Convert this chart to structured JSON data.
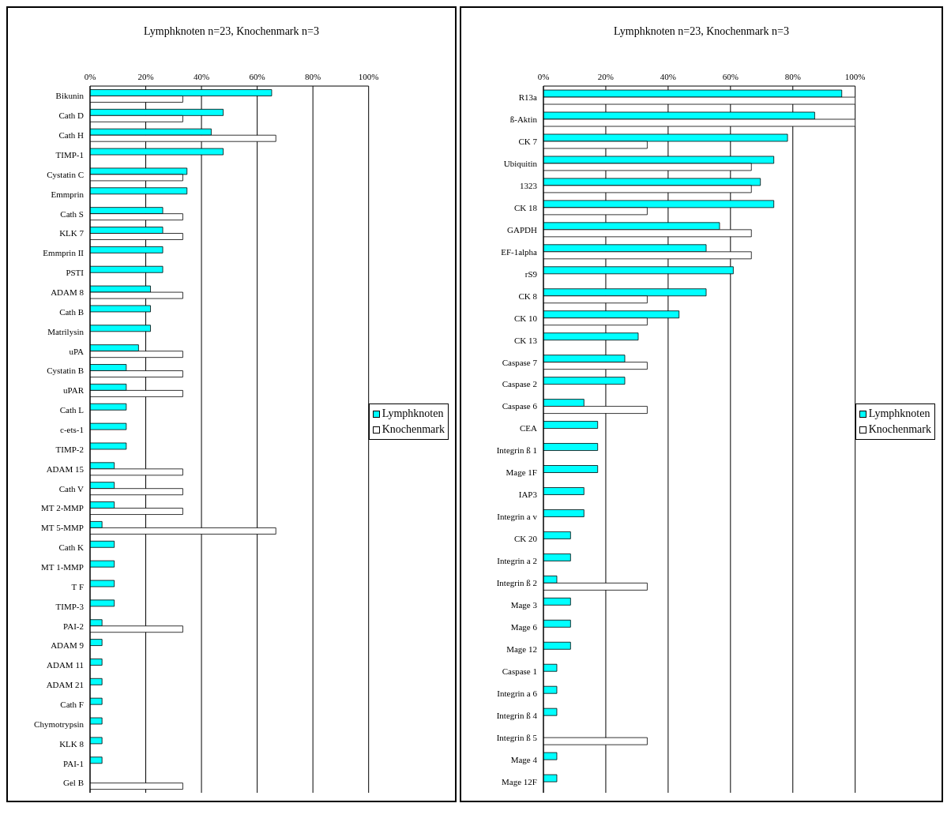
{
  "chart_data": [
    {
      "type": "bar",
      "orientation": "horizontal",
      "title": "Lymphknoten n=23, Knochenmark n=3",
      "categories": [
        "Bikunin",
        "Cath D",
        "Cath H",
        "TIMP-1",
        "Cystatin C",
        "Emmprin",
        "Cath S",
        "KLK 7",
        "Emmprin II",
        "PSTI",
        "ADAM  8",
        "Cath B",
        "Matrilysin",
        "uPA",
        "Cystatin B",
        "uPAR",
        "Cath L",
        "c-ets-1",
        "TIMP-2",
        "ADAM 15",
        "Cath V",
        "MT 2-MMP",
        "MT 5-MMP",
        "Cath K",
        "MT 1-MMP",
        "T F",
        "TIMP-3",
        "PAI-2",
        "ADAM 9",
        "ADAM 11",
        "ADAM 21",
        "Cath F",
        "Chymotrypsin",
        "KLK 8",
        "PAI-1",
        "Gel B"
      ],
      "series": [
        {
          "name": "Lymphknoten",
          "color": "#00ffff",
          "values": [
            65.2,
            47.8,
            43.5,
            47.8,
            34.8,
            34.8,
            26.1,
            26.1,
            26.1,
            26.1,
            21.7,
            21.7,
            21.7,
            17.4,
            13.0,
            13.0,
            13.0,
            13.0,
            13.0,
            8.7,
            8.7,
            8.7,
            4.3,
            8.7,
            8.7,
            8.7,
            8.7,
            4.3,
            4.3,
            4.3,
            4.3,
            4.3,
            4.3,
            4.3,
            4.3,
            null
          ]
        },
        {
          "name": "Knochenmark",
          "color": "#ffffff",
          "values": [
            33.3,
            33.3,
            66.7,
            null,
            33.3,
            null,
            33.3,
            33.3,
            null,
            null,
            33.3,
            null,
            null,
            33.3,
            33.3,
            33.3,
            null,
            null,
            null,
            33.3,
            33.3,
            33.3,
            66.7,
            null,
            null,
            null,
            null,
            33.3,
            null,
            null,
            null,
            null,
            null,
            null,
            null,
            33.3
          ]
        }
      ],
      "xlim": [
        0,
        100
      ],
      "xticks": [
        {
          "value": 0,
          "label": "0%"
        },
        {
          "value": 20,
          "label": "20%"
        },
        {
          "value": 40,
          "label": "40%"
        },
        {
          "value": 60,
          "label": "60%"
        },
        {
          "value": 80,
          "label": "80%"
        },
        {
          "value": 100,
          "label": "100%"
        }
      ],
      "grid": "x",
      "legend": "right"
    },
    {
      "type": "bar",
      "orientation": "horizontal",
      "title": "Lymphknoten n=23, Knochenmark n=3",
      "categories": [
        "R13a",
        "ß-Aktin",
        "CK 7",
        "Ubiquitin",
        "1323",
        "CK 18",
        "GAPDH",
        "EF-1alpha",
        "rS9",
        "CK 8",
        "CK 10",
        "CK 13",
        "Caspase 7",
        "Caspase 2",
        "Caspase 6",
        "CEA",
        "Integrin ß 1",
        "Mage 1F",
        "IAP3",
        "Integrin a v",
        "CK 20",
        "Integrin a 2",
        "Integrin ß 2",
        "Mage 3",
        "Mage 6",
        "Mage 12",
        "Caspase 1",
        "Integrin a 6",
        "Integrin ß 4",
        "Integrin ß 5",
        "Mage 4",
        "Mage 12F"
      ],
      "series": [
        {
          "name": "Lymphknoten",
          "color": "#00ffff",
          "values": [
            95.7,
            87.0,
            78.3,
            73.9,
            69.6,
            73.9,
            56.5,
            52.2,
            60.9,
            52.2,
            43.5,
            30.4,
            26.1,
            26.1,
            13.0,
            17.4,
            17.4,
            17.4,
            13.0,
            13.0,
            8.7,
            8.7,
            4.3,
            8.7,
            8.7,
            8.7,
            4.3,
            4.3,
            4.3,
            null,
            4.3,
            4.3
          ]
        },
        {
          "name": "Knochenmark",
          "color": "#ffffff",
          "values": [
            100,
            100,
            33.3,
            66.7,
            66.7,
            33.3,
            66.7,
            66.7,
            null,
            33.3,
            33.3,
            null,
            33.3,
            null,
            33.3,
            null,
            null,
            null,
            null,
            null,
            null,
            null,
            33.3,
            null,
            null,
            null,
            null,
            null,
            null,
            33.3,
            null,
            null
          ]
        }
      ],
      "xlim": [
        0,
        100
      ],
      "xticks": [
        {
          "value": 0,
          "label": "0%"
        },
        {
          "value": 20,
          "label": "20%"
        },
        {
          "value": 40,
          "label": "40%"
        },
        {
          "value": 60,
          "label": "60%"
        },
        {
          "value": 80,
          "label": "80%"
        },
        {
          "value": 100,
          "label": "100%"
        }
      ],
      "grid": "x",
      "legend": "right"
    }
  ]
}
